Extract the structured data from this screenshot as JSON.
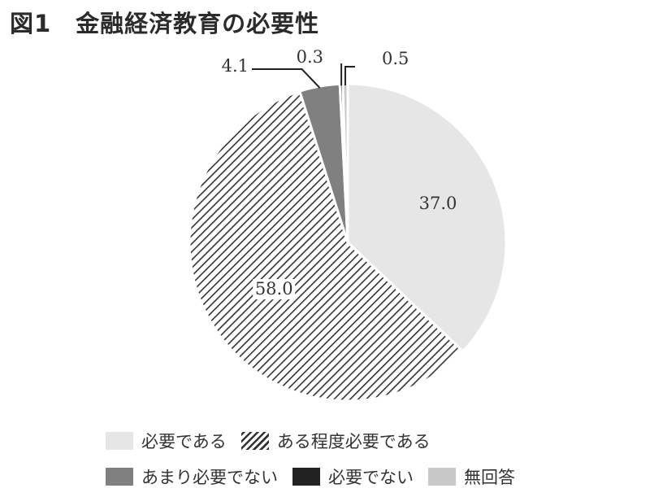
{
  "title": "図1　金融経済教育の必要性",
  "chart_data": {
    "type": "pie",
    "title": "図1　金融経済教育の必要性",
    "start": "12 o'clock, clockwise",
    "slices": [
      {
        "label": "必要である",
        "value": 37.0,
        "value_label": "37.0",
        "fill": "#e6e6e6",
        "pattern": "solid"
      },
      {
        "label": "ある程度必要である",
        "value": 58.0,
        "value_label": "58.0",
        "fill": "#ffffff",
        "pattern": "diagonal-hatch"
      },
      {
        "label": "あまり必要でない",
        "value": 4.1,
        "value_label": "4.1",
        "fill": "#808080",
        "pattern": "solid"
      },
      {
        "label": "必要でない",
        "value": 0.3,
        "value_label": "0.3",
        "fill": "#222222",
        "pattern": "solid"
      },
      {
        "label": "無回答",
        "value": 0.5,
        "value_label": "0.5",
        "fill": "#c8c8c8",
        "pattern": "solid"
      }
    ],
    "legend_placement": "bottom"
  },
  "legend": {
    "rows": [
      [
        {
          "label": "必要である",
          "slice": 0
        },
        {
          "label": "ある程度必要である",
          "slice": 1
        }
      ],
      [
        {
          "label": "あまり必要でない",
          "slice": 2
        },
        {
          "label": "必要でない",
          "slice": 3
        },
        {
          "label": "無回答",
          "slice": 4
        }
      ]
    ]
  },
  "colors": {
    "hatch_line": "#333333",
    "slice_edge": "#ffffff",
    "text": "#333333"
  }
}
